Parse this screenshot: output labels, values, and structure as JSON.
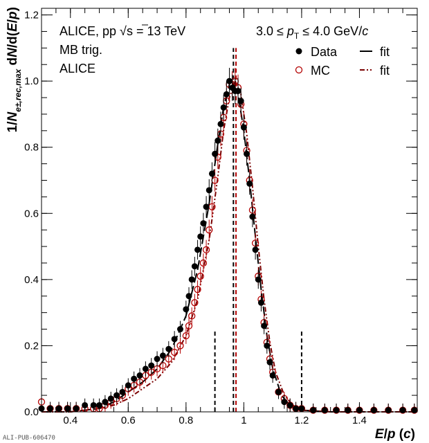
{
  "chart_data": {
    "type": "scatter",
    "xlabel_parts": [
      "E",
      "/",
      "p",
      " (",
      "c",
      ")"
    ],
    "ylabel_parts": [
      "1/",
      "N",
      "e±,rec,max",
      " d",
      "N",
      "/d(",
      "E",
      "/",
      "p",
      ")"
    ],
    "xlim": [
      0.3,
      1.6
    ],
    "ylim": [
      0.0,
      1.22
    ],
    "x_ticks": [
      "0.4",
      "0.6",
      "0.8",
      "1",
      "1.2",
      "1.4"
    ],
    "y_ticks": [
      "0.0",
      "0.2",
      "0.4",
      "0.6",
      "0.8",
      "1.0",
      "1.2"
    ],
    "x_tick_values": [
      0.4,
      0.6,
      0.8,
      1.0,
      1.2,
      1.4
    ],
    "y_tick_values": [
      0.0,
      0.2,
      0.4,
      0.6,
      0.8,
      1.0,
      1.2
    ],
    "annotations": {
      "experiment": "ALICE, pp",
      "energy_sqrt": "s",
      "energy_value": " = 13 TeV",
      "trigger": "MB trig.",
      "collab": "ALICE",
      "pt_lo": "3.0 ≤ ",
      "pt_var": "p",
      "pt_sub": "T",
      "pt_hi": " ≤ 4.0 GeV/",
      "pt_unit": "c",
      "pub_id": "ALI-PUB-606470"
    },
    "legend": {
      "placement": "top-right",
      "entries": [
        {
          "label": "Data",
          "marker": "filled-circle",
          "color": "#000000"
        },
        {
          "label": "fit",
          "line": "solid",
          "color": "#000000"
        },
        {
          "label": "MC",
          "marker": "open-circle",
          "color": "#b30000"
        },
        {
          "label": "fit",
          "line": "dash-dot-dot",
          "color": "#7a0000"
        }
      ]
    },
    "vertical_lines": [
      {
        "x": 0.9,
        "y_top": 0.25,
        "style": "dashed",
        "color": "#000000"
      },
      {
        "x": 1.2,
        "y_top": 0.25,
        "style": "dashed",
        "color": "#000000"
      },
      {
        "x": 0.964,
        "y_top": 1.1,
        "style": "dashed",
        "color": "#000000"
      },
      {
        "x": 0.973,
        "y_top": 1.1,
        "style": "dashed",
        "color": "#b30000"
      }
    ],
    "series": [
      {
        "name": "Data",
        "marker": "filled-circle",
        "color": "#000000",
        "x": [
          0.3,
          0.33,
          0.36,
          0.39,
          0.42,
          0.45,
          0.48,
          0.5,
          0.52,
          0.54,
          0.56,
          0.58,
          0.6,
          0.62,
          0.64,
          0.66,
          0.68,
          0.7,
          0.72,
          0.74,
          0.76,
          0.78,
          0.8,
          0.81,
          0.82,
          0.83,
          0.84,
          0.85,
          0.86,
          0.87,
          0.88,
          0.89,
          0.9,
          0.91,
          0.92,
          0.93,
          0.94,
          0.95,
          0.96,
          0.97,
          0.98,
          0.99,
          1.0,
          1.01,
          1.02,
          1.03,
          1.04,
          1.05,
          1.06,
          1.07,
          1.08,
          1.09,
          1.1,
          1.12,
          1.14,
          1.16,
          1.18,
          1.2,
          1.24,
          1.28,
          1.32,
          1.36,
          1.4,
          1.45,
          1.5,
          1.55,
          1.59
        ],
        "y": [
          0.01,
          0.01,
          0.01,
          0.01,
          0.01,
          0.02,
          0.02,
          0.02,
          0.03,
          0.04,
          0.05,
          0.06,
          0.08,
          0.1,
          0.11,
          0.13,
          0.14,
          0.16,
          0.17,
          0.19,
          0.22,
          0.25,
          0.31,
          0.35,
          0.4,
          0.44,
          0.49,
          0.53,
          0.57,
          0.62,
          0.67,
          0.72,
          0.78,
          0.82,
          0.87,
          0.92,
          0.96,
          1.0,
          0.98,
          0.97,
          0.97,
          0.94,
          0.86,
          0.78,
          0.69,
          0.59,
          0.49,
          0.4,
          0.33,
          0.26,
          0.2,
          0.15,
          0.11,
          0.06,
          0.03,
          0.02,
          0.01,
          0.01,
          0.005,
          0.005,
          0.005,
          0.005,
          0.005,
          0.005,
          0.005,
          0.005,
          0.005
        ]
      },
      {
        "name": "MC",
        "marker": "open-circle",
        "color": "#b30000",
        "x": [
          0.3,
          0.33,
          0.36,
          0.39,
          0.42,
          0.45,
          0.48,
          0.5,
          0.52,
          0.54,
          0.56,
          0.58,
          0.6,
          0.62,
          0.64,
          0.66,
          0.68,
          0.7,
          0.72,
          0.74,
          0.76,
          0.78,
          0.8,
          0.81,
          0.82,
          0.83,
          0.84,
          0.85,
          0.86,
          0.87,
          0.88,
          0.89,
          0.9,
          0.91,
          0.92,
          0.93,
          0.94,
          0.95,
          0.96,
          0.97,
          0.98,
          0.99,
          1.0,
          1.01,
          1.02,
          1.03,
          1.04,
          1.05,
          1.06,
          1.07,
          1.08,
          1.09,
          1.1,
          1.12,
          1.14,
          1.16,
          1.18,
          1.2,
          1.24,
          1.28,
          1.32,
          1.36,
          1.4,
          1.45,
          1.5,
          1.55,
          1.59
        ],
        "y": [
          0.03,
          0.01,
          0.01,
          0.01,
          0.01,
          0.01,
          0.01,
          0.01,
          0.02,
          0.03,
          0.04,
          0.05,
          0.07,
          0.08,
          0.09,
          0.11,
          0.12,
          0.13,
          0.14,
          0.16,
          0.18,
          0.2,
          0.23,
          0.26,
          0.29,
          0.33,
          0.37,
          0.41,
          0.45,
          0.49,
          0.55,
          0.62,
          0.7,
          0.77,
          0.84,
          0.89,
          0.94,
          0.99,
          0.99,
          1.0,
          0.98,
          0.93,
          0.87,
          0.79,
          0.7,
          0.61,
          0.51,
          0.41,
          0.34,
          0.27,
          0.21,
          0.16,
          0.12,
          0.06,
          0.04,
          0.02,
          0.01,
          0.01,
          0.005,
          0.005,
          0.005,
          0.005,
          0.005,
          0.005,
          0.005,
          0.005,
          0.005
        ]
      }
    ],
    "fit_curves": [
      {
        "label": "fit",
        "style": "long-dash",
        "color": "#000000",
        "x": [
          0.3,
          0.4,
          0.5,
          0.55,
          0.6,
          0.65,
          0.7,
          0.75,
          0.8,
          0.84,
          0.88,
          0.91,
          0.93,
          0.95,
          0.96,
          0.98,
          1.0,
          1.02,
          1.04,
          1.06,
          1.08,
          1.1,
          1.13,
          1.16,
          1.2,
          1.3,
          1.6
        ],
        "y": [
          0.0,
          0.0,
          0.01,
          0.03,
          0.06,
          0.09,
          0.13,
          0.19,
          0.29,
          0.43,
          0.63,
          0.81,
          0.92,
          0.99,
          1.0,
          0.96,
          0.85,
          0.7,
          0.53,
          0.37,
          0.23,
          0.13,
          0.05,
          0.02,
          0.005,
          0.0,
          0.0
        ]
      },
      {
        "label": "fit",
        "style": "dash-dot-dot",
        "color": "#7a0000",
        "x": [
          0.3,
          0.4,
          0.5,
          0.55,
          0.6,
          0.65,
          0.7,
          0.75,
          0.8,
          0.84,
          0.88,
          0.91,
          0.93,
          0.95,
          0.97,
          0.99,
          1.01,
          1.03,
          1.05,
          1.07,
          1.09,
          1.11,
          1.14,
          1.17,
          1.2,
          1.3,
          1.6
        ],
        "y": [
          0.0,
          0.0,
          0.01,
          0.02,
          0.04,
          0.07,
          0.1,
          0.15,
          0.23,
          0.34,
          0.52,
          0.71,
          0.85,
          0.95,
          1.0,
          0.96,
          0.84,
          0.68,
          0.5,
          0.34,
          0.21,
          0.12,
          0.05,
          0.02,
          0.005,
          0.0,
          0.0
        ]
      }
    ]
  }
}
